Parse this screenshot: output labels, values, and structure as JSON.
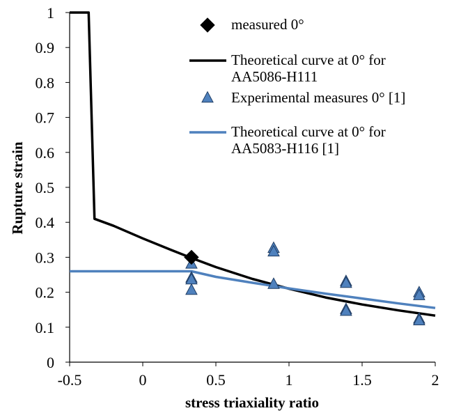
{
  "chart_data": {
    "type": "scatter",
    "xlabel": "stress triaxiality ratio",
    "ylabel": "Rupture strain",
    "xlim": [
      -0.5,
      2
    ],
    "ylim": [
      0,
      1
    ],
    "x_ticks": [
      "-0.5",
      "0",
      "0.5",
      "1",
      "1.5",
      "2"
    ],
    "y_ticks": [
      "0",
      "0.1",
      "0.2",
      "0.3",
      "0.4",
      "0.5",
      "0.6",
      "0.7",
      "0.8",
      "0.9",
      "1"
    ],
    "grid": false,
    "legend_position": "top-right",
    "series": [
      {
        "name": "measured 0°",
        "kind": "markers",
        "marker": "diamond",
        "color": "#000000",
        "x": [
          0.333
        ],
        "y": [
          0.3
        ]
      },
      {
        "name": "Theoretical curve at 0° for AA5086-H111",
        "kind": "line",
        "color": "#000000",
        "x": [
          -0.5,
          -0.4,
          -0.37,
          -0.33,
          -0.2,
          0,
          0.2,
          0.333,
          0.5,
          0.75,
          1,
          1.25,
          1.5,
          1.75,
          2
        ],
        "y": [
          1,
          1,
          1,
          0.41,
          0.39,
          0.354,
          0.32,
          0.298,
          0.272,
          0.238,
          0.21,
          0.185,
          0.165,
          0.148,
          0.133
        ]
      },
      {
        "name": "Experimental measures 0° [1]",
        "kind": "markers",
        "marker": "triangle",
        "color": "#4F81BD",
        "x": [
          0.333,
          0.333,
          0.333,
          0.333,
          0.895,
          0.895,
          0.895,
          1.39,
          1.39,
          1.39,
          1.39,
          1.89,
          1.89,
          1.89,
          1.89
        ],
        "y": [
          0.28,
          0.24,
          0.235,
          0.205,
          0.325,
          0.315,
          0.222,
          0.23,
          0.225,
          0.15,
          0.145,
          0.198,
          0.19,
          0.123,
          0.118
        ]
      },
      {
        "name": "Theoretical curve at 0° for AA5083-H116 [1]",
        "kind": "line",
        "color": "#4F81BD",
        "x": [
          -0.5,
          0.333,
          0.5,
          0.75,
          1,
          1.25,
          1.5,
          1.75,
          2
        ],
        "y": [
          0.26,
          0.26,
          0.244,
          0.227,
          0.211,
          0.196,
          0.182,
          0.168,
          0.155
        ]
      }
    ],
    "legend": [
      {
        "lines": [
          "measured 0°"
        ],
        "symbol": "diamond",
        "color": "#000000"
      },
      {
        "lines": [
          "Theoretical curve at 0° for",
          "AA5086-H111"
        ],
        "symbol": "line",
        "color": "#000000"
      },
      {
        "lines": [
          "Experimental measures 0° [1]"
        ],
        "symbol": "triangle",
        "color": "#4F81BD"
      },
      {
        "lines": [
          "Theoretical curve at 0° for",
          "AA5083-H116 [1]"
        ],
        "symbol": "line",
        "color": "#4F81BD"
      }
    ]
  }
}
